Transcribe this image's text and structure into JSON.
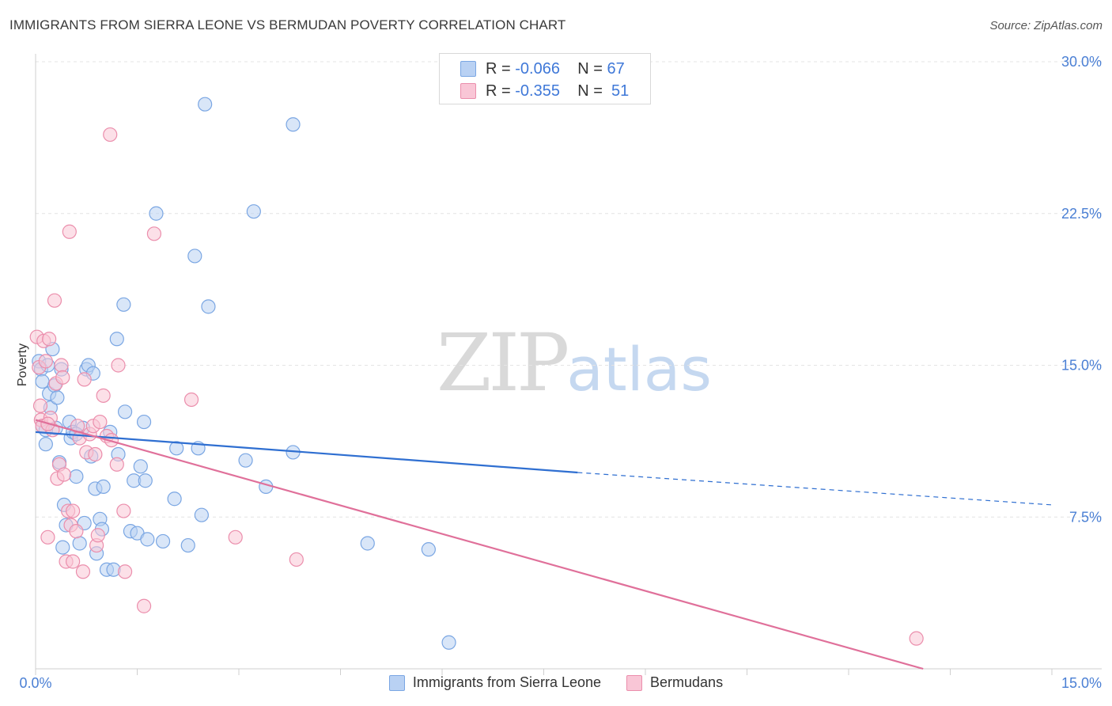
{
  "title": "IMMIGRANTS FROM SIERRA LEONE VS BERMUDAN POVERTY CORRELATION CHART",
  "source": "Source: ZipAtlas.com",
  "watermark": {
    "zip": "ZIP",
    "atlas": "atlas"
  },
  "colors": {
    "blue_fill": "#b9d1f3",
    "blue_stroke": "#7aa6e3",
    "blue_line": "#2f6fd1",
    "pink_fill": "#f9c6d6",
    "pink_stroke": "#eb8eac",
    "pink_line": "#e0709a",
    "grid": "#e4e4e4",
    "axis_text": "#4a7fd4"
  },
  "legend": {
    "rows": [
      {
        "r_label": "R =",
        "r_value": "-0.066",
        "n_label": "N =",
        "n_value": "67"
      },
      {
        "r_label": "R =",
        "r_value": "-0.355",
        "n_label": "N =",
        "n_value": "51"
      }
    ]
  },
  "bottom_legend": [
    "Immigrants from Sierra Leone",
    "Bermudans"
  ],
  "chart_data": {
    "type": "scatter",
    "title": "IMMIGRANTS FROM SIERRA LEONE VS BERMUDAN POVERTY CORRELATION CHART",
    "xlabel": "",
    "ylabel": "Poverty",
    "xlim": [
      0,
      15
    ],
    "ylim": [
      0,
      30
    ],
    "x_tick_labels": [
      "0.0%",
      "15.0%"
    ],
    "y_ticks": [
      7.5,
      15.0,
      22.5,
      30.0
    ],
    "y_tick_labels": [
      "7.5%",
      "15.0%",
      "22.5%",
      "30.0%"
    ],
    "series": [
      {
        "name": "Immigrants from Sierra Leone",
        "R": -0.066,
        "N": 67,
        "trend": {
          "x0": 0,
          "y0": 11.7,
          "x1": 8.0,
          "y1": 9.7,
          "dash_to_x": 15.0,
          "dash_y": 8.1
        },
        "points": [
          [
            0.05,
            15.2
          ],
          [
            0.08,
            14.8
          ],
          [
            0.1,
            14.2
          ],
          [
            0.1,
            12.0
          ],
          [
            0.15,
            11.1
          ],
          [
            0.18,
            15.0
          ],
          [
            0.2,
            13.6
          ],
          [
            0.22,
            12.9
          ],
          [
            0.25,
            15.8
          ],
          [
            0.28,
            14.0
          ],
          [
            0.3,
            11.9
          ],
          [
            0.32,
            13.4
          ],
          [
            0.35,
            10.2
          ],
          [
            0.38,
            14.8
          ],
          [
            0.4,
            6.0
          ],
          [
            0.42,
            8.1
          ],
          [
            0.45,
            7.1
          ],
          [
            0.5,
            12.2
          ],
          [
            0.52,
            11.4
          ],
          [
            0.55,
            11.7
          ],
          [
            0.6,
            9.5
          ],
          [
            0.65,
            6.2
          ],
          [
            0.7,
            11.9
          ],
          [
            0.72,
            7.2
          ],
          [
            0.75,
            14.8
          ],
          [
            0.78,
            15.0
          ],
          [
            0.82,
            10.5
          ],
          [
            0.85,
            14.6
          ],
          [
            0.88,
            8.9
          ],
          [
            0.9,
            5.7
          ],
          [
            0.95,
            7.4
          ],
          [
            0.98,
            6.9
          ],
          [
            1.0,
            9.0
          ],
          [
            1.05,
            4.9
          ],
          [
            1.1,
            11.7
          ],
          [
            1.15,
            4.9
          ],
          [
            1.2,
            16.3
          ],
          [
            1.22,
            10.6
          ],
          [
            1.3,
            18.0
          ],
          [
            1.32,
            12.7
          ],
          [
            1.4,
            6.8
          ],
          [
            1.45,
            9.3
          ],
          [
            1.5,
            6.7
          ],
          [
            1.55,
            10.0
          ],
          [
            1.6,
            12.2
          ],
          [
            1.62,
            9.3
          ],
          [
            1.65,
            6.4
          ],
          [
            1.78,
            22.5
          ],
          [
            1.88,
            6.3
          ],
          [
            2.05,
            8.4
          ],
          [
            2.08,
            10.9
          ],
          [
            2.25,
            6.1
          ],
          [
            2.35,
            20.4
          ],
          [
            2.4,
            10.9
          ],
          [
            2.45,
            7.6
          ],
          [
            2.5,
            27.9
          ],
          [
            2.55,
            17.9
          ],
          [
            3.1,
            10.3
          ],
          [
            3.22,
            22.6
          ],
          [
            3.4,
            9.0
          ],
          [
            3.8,
            26.9
          ],
          [
            3.8,
            10.7
          ],
          [
            4.9,
            6.2
          ],
          [
            5.8,
            5.9
          ],
          [
            6.1,
            1.3
          ],
          [
            0.15,
            11.8
          ],
          [
            0.6,
            11.6
          ]
        ]
      },
      {
        "name": "Bermudans",
        "R": -0.355,
        "N": 51,
        "trend": {
          "x0": 0,
          "y0": 12.3,
          "x1": 13.1,
          "y1": 0
        },
        "points": [
          [
            0.02,
            16.4
          ],
          [
            0.05,
            14.9
          ],
          [
            0.07,
            13.0
          ],
          [
            0.08,
            12.3
          ],
          [
            0.1,
            12.0
          ],
          [
            0.12,
            16.2
          ],
          [
            0.15,
            15.2
          ],
          [
            0.18,
            6.5
          ],
          [
            0.2,
            16.3
          ],
          [
            0.22,
            12.4
          ],
          [
            0.25,
            11.8
          ],
          [
            0.28,
            18.2
          ],
          [
            0.3,
            14.1
          ],
          [
            0.32,
            9.4
          ],
          [
            0.35,
            10.1
          ],
          [
            0.38,
            15.0
          ],
          [
            0.4,
            14.4
          ],
          [
            0.42,
            9.6
          ],
          [
            0.45,
            5.3
          ],
          [
            0.48,
            7.8
          ],
          [
            0.5,
            21.6
          ],
          [
            0.52,
            7.1
          ],
          [
            0.55,
            5.3
          ],
          [
            0.6,
            6.8
          ],
          [
            0.62,
            12.0
          ],
          [
            0.65,
            11.4
          ],
          [
            0.7,
            4.8
          ],
          [
            0.72,
            14.3
          ],
          [
            0.75,
            10.7
          ],
          [
            0.8,
            11.6
          ],
          [
            0.85,
            12.0
          ],
          [
            0.88,
            10.6
          ],
          [
            0.9,
            6.1
          ],
          [
            0.92,
            6.6
          ],
          [
            0.95,
            12.2
          ],
          [
            1.0,
            13.5
          ],
          [
            1.05,
            11.5
          ],
          [
            1.1,
            26.4
          ],
          [
            1.12,
            11.3
          ],
          [
            1.2,
            10.1
          ],
          [
            1.22,
            15.0
          ],
          [
            1.3,
            7.8
          ],
          [
            1.32,
            4.8
          ],
          [
            1.6,
            3.1
          ],
          [
            1.75,
            21.5
          ],
          [
            2.3,
            13.3
          ],
          [
            2.95,
            6.5
          ],
          [
            3.85,
            5.4
          ],
          [
            13.0,
            1.5
          ],
          [
            0.55,
            7.8
          ],
          [
            0.18,
            12.1
          ]
        ]
      }
    ]
  }
}
